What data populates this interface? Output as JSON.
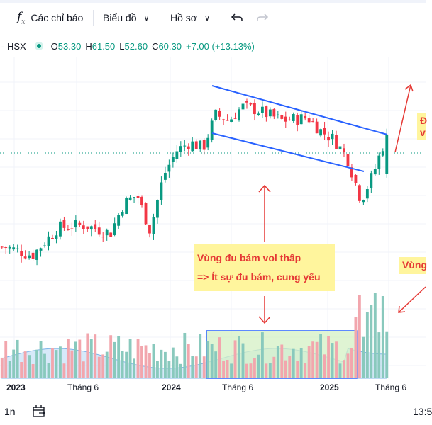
{
  "toolbar": {
    "indicators_label": "Các chỉ báo",
    "chart_type_label": "Biểu đồ",
    "profile_label": "Hồ sơ",
    "undo_icon": "undo-icon",
    "redo_icon": "redo-icon"
  },
  "legend": {
    "symbol_suffix": "- HSX",
    "open_key": "O",
    "open": "53.30",
    "high_key": "H",
    "high": "61.50",
    "low_key": "L",
    "low": "52.60",
    "close_key": "C",
    "close": "60.30",
    "change": "+7.00 (+13.13%)"
  },
  "annotations": {
    "zone_line1": "Vùng đu bám vol thấp",
    "zone_line2": "=> Ít sự đu bám, cung yếu",
    "right_top_fragment": "Đ\nv",
    "right_mid_fragment": "Vùng"
  },
  "time_axis": {
    "labels": [
      "2023",
      "Tháng 6",
      "2024",
      "Tháng 6",
      "2025",
      "Tháng 6"
    ]
  },
  "bottombar": {
    "period": "1n",
    "time": "13:5"
  },
  "colors": {
    "up": "#089981",
    "down": "#f23645",
    "vol_up": "#89c9bd",
    "vol_down": "#f2a6ad",
    "channel": "#2962ff",
    "arrow": "#e53935",
    "note_bg": "#fff59d",
    "zone_fill": "#d4f0c4",
    "zone_border": "#2962ff",
    "ma_area": "#b7d7f4"
  },
  "chart_data": {
    "type": "candlestick",
    "price_waypoints": [
      {
        "date": "2022-11",
        "close": 40.0
      },
      {
        "date": "2023-01",
        "close": 38.5
      },
      {
        "date": "2023-03",
        "close": 43.5
      },
      {
        "date": "2023-05",
        "close": 44.0
      },
      {
        "date": "2023-07",
        "close": 42.5
      },
      {
        "date": "2023-08",
        "close": 48.0
      },
      {
        "date": "2023-09",
        "close": 49.5
      },
      {
        "date": "2023-10",
        "close": 43.0
      },
      {
        "date": "2023-11",
        "close": 53.0
      },
      {
        "date": "2023-12",
        "close": 57.5
      },
      {
        "date": "2024-01",
        "close": 59.0
      },
      {
        "date": "2024-02",
        "close": 58.0
      },
      {
        "date": "2024-03",
        "close": 64.0
      },
      {
        "date": "2024-04",
        "close": 63.0
      },
      {
        "date": "2024-05",
        "close": 65.5
      },
      {
        "date": "2024-06",
        "close": 65.0
      },
      {
        "date": "2024-08",
        "close": 63.0
      },
      {
        "date": "2024-10",
        "close": 63.5
      },
      {
        "date": "2024-11",
        "close": 61.0
      },
      {
        "date": "2024-12",
        "close": 59.5
      },
      {
        "date": "2025-01",
        "close": 56.0
      },
      {
        "date": "2025-02",
        "close": 48.5
      },
      {
        "date": "2025-03",
        "close": 53.3
      },
      {
        "date": "2025-04",
        "close": 60.3
      }
    ],
    "last_bar": {
      "open": 53.3,
      "high": 61.5,
      "low": 52.6,
      "close": 60.3
    },
    "volume": "relative, low in highlighted zone Jun 2024 – Feb 2025, spikes in Mar 2025",
    "shown_range": {
      "x": [
        "2022-11",
        "2025-04"
      ],
      "y": [
        36,
        72
      ]
    },
    "annotations": [
      "descending channel 2024-05 to 2025-03",
      "volume zone box"
    ]
  }
}
